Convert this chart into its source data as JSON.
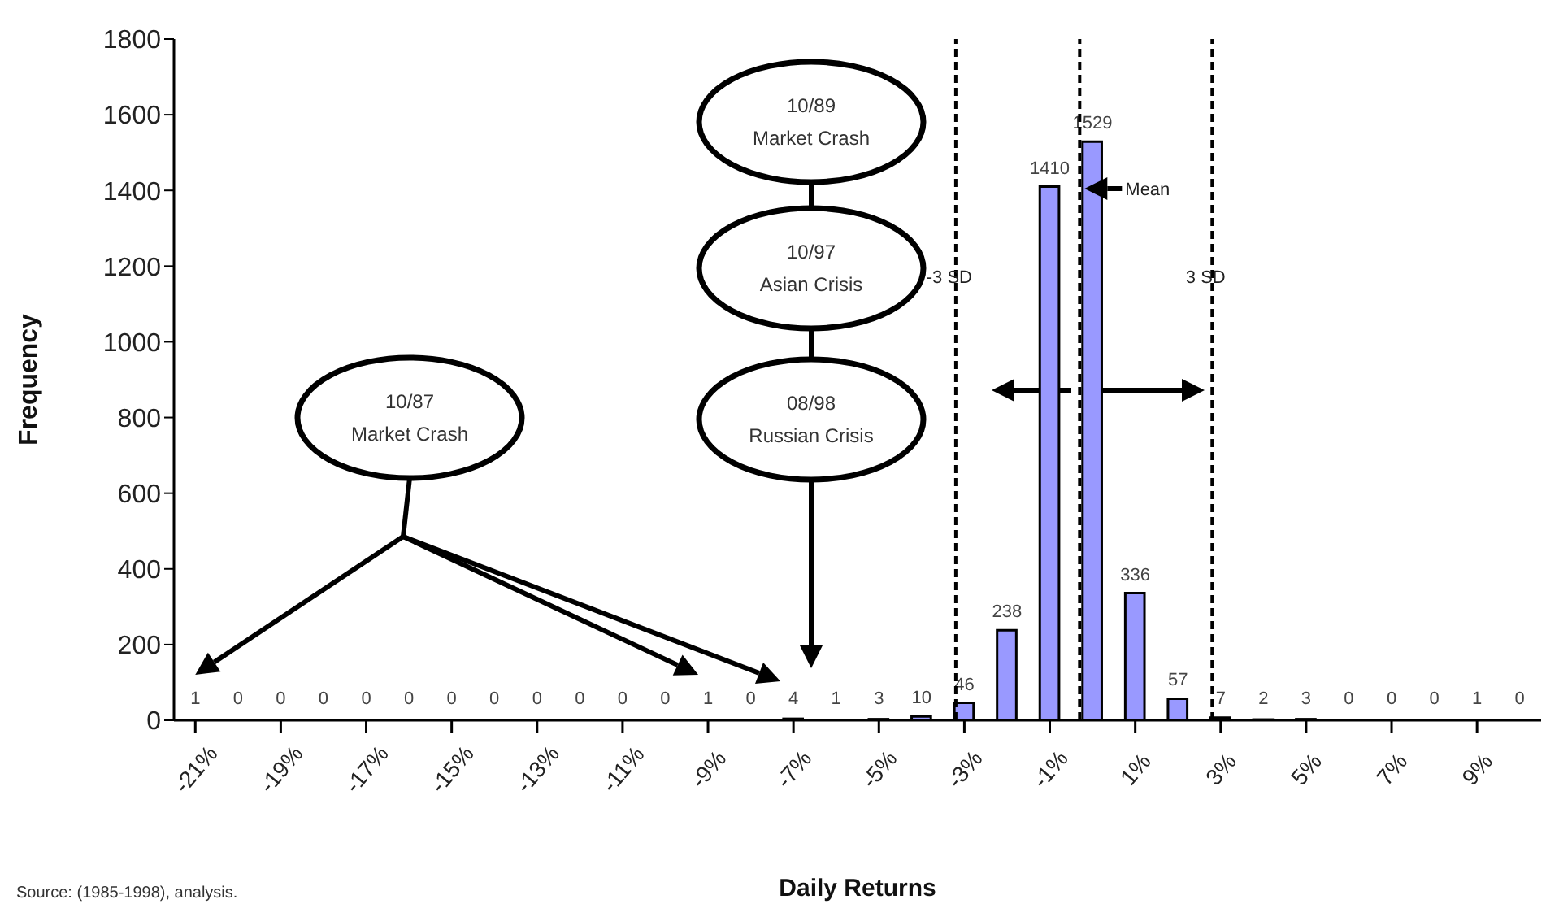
{
  "chart_data": {
    "type": "histogram",
    "xlabel": "Daily Returns",
    "ylabel": "Frequency",
    "bins": [
      -21.5,
      -20.5,
      -19.5,
      -18.5,
      -17.5,
      -16.5,
      -15.5,
      -14.5,
      -13.5,
      -12.5,
      -11.5,
      -10.5,
      -9.5,
      -8.5,
      -7.5,
      -6.5,
      -5.5,
      -4.5,
      -3.5,
      -2.5,
      -1.5,
      -0.5,
      0.5,
      1.5,
      2.5,
      3.5,
      4.5,
      5.5,
      6.5,
      7.5,
      8.5,
      9.5,
      10.5
    ],
    "values": [
      1,
      0,
      0,
      0,
      0,
      0,
      0,
      0,
      0,
      0,
      0,
      0,
      1,
      0,
      4,
      1,
      3,
      10,
      46,
      238,
      1410,
      1529,
      336,
      57,
      7,
      2,
      3,
      0,
      0,
      0,
      1,
      0
    ],
    "color": "#9999ff",
    "data_labels": true,
    "xlim": [
      -21.5,
      10.5
    ],
    "xticks": [
      {
        "value": -21,
        "label": "-21%"
      },
      {
        "value": -19,
        "label": "-19%"
      },
      {
        "value": -17,
        "label": "-17%"
      },
      {
        "value": -15,
        "label": "-15%"
      },
      {
        "value": -13,
        "label": "-13%"
      },
      {
        "value": -11,
        "label": "-11%"
      },
      {
        "value": -9,
        "label": "-9%"
      },
      {
        "value": -7,
        "label": "-7%"
      },
      {
        "value": -5,
        "label": "-5%"
      },
      {
        "value": -3,
        "label": "-3%"
      },
      {
        "value": -1,
        "label": "-1%"
      },
      {
        "value": 1,
        "label": "1%"
      },
      {
        "value": 3,
        "label": "3%"
      },
      {
        "value": 5,
        "label": "5%"
      },
      {
        "value": 7,
        "label": "7%"
      },
      {
        "value": 9,
        "label": "9%"
      }
    ],
    "ylim": [
      0,
      1800
    ],
    "yticks": [
      0,
      200,
      400,
      600,
      800,
      1000,
      1200,
      1400,
      1600,
      1800
    ],
    "ref_lines": [
      {
        "axis": "x",
        "value": -3.2,
        "label": "-3 SD",
        "line_style": "dashed",
        "color": "#000000"
      },
      {
        "axis": "x",
        "value": -0.3,
        "label": "Mean",
        "line_style": "dashed",
        "color": "#000000"
      },
      {
        "axis": "x",
        "value": 2.8,
        "label": "3 SD",
        "line_style": "dashed",
        "color": "#000000"
      }
    ],
    "annotations": [
      "10/87\nMarket Crash",
      "10/89\nMarket Crash",
      "10/97\nAsian Crisis",
      "08/98\nRussian Crisis",
      "Source: (1985-1998), analysis."
    ],
    "legend": false
  }
}
